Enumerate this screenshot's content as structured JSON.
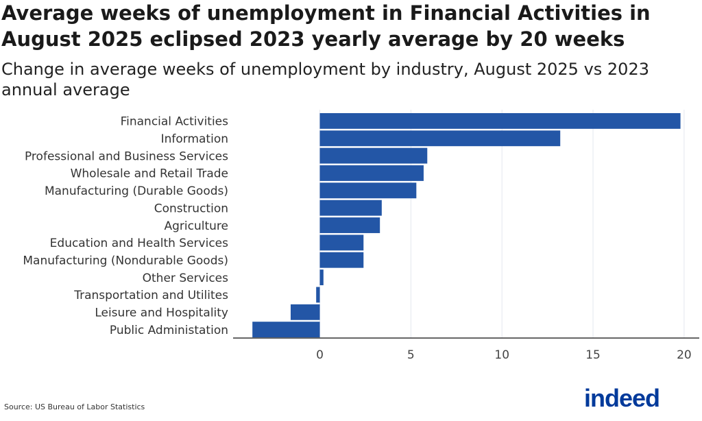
{
  "title": "Average weeks of unemployment in Financial Activities in August 2025 eclipsed 2023 yearly average by 20 weeks",
  "subtitle": "Change in average weeks of unemployment by industry, August 2025 vs 2023 annual average",
  "source": "Source: US Bureau of Labor Statistics",
  "logo_text": "indeed",
  "colors": {
    "bar": "#2356a6",
    "grid": "#e3e6ee",
    "axis": "#333333",
    "logo": "#003a9b"
  },
  "chart_data": {
    "type": "bar",
    "orientation": "horizontal",
    "categories": [
      "Financial Activities",
      "Information",
      "Professional and Business Services",
      "Wholesale and Retail Trade",
      "Manufacturing (Durable Goods)",
      "Construction",
      "Agriculture",
      "Education and Health Services",
      "Manufacturing (Nondurable Goods)",
      "Other Services",
      "Transportation and Utilites",
      "Leisure and Hospitality",
      "Public Administation"
    ],
    "values": [
      19.8,
      13.2,
      5.9,
      5.7,
      5.3,
      3.4,
      3.3,
      2.4,
      2.4,
      0.2,
      -0.2,
      -1.6,
      -3.7
    ],
    "xlim": [
      -4.7,
      20.8
    ],
    "xticks": [
      0,
      5,
      10,
      15,
      20
    ],
    "grid": "vertical",
    "legend": "none",
    "xlabel": "",
    "ylabel": ""
  }
}
